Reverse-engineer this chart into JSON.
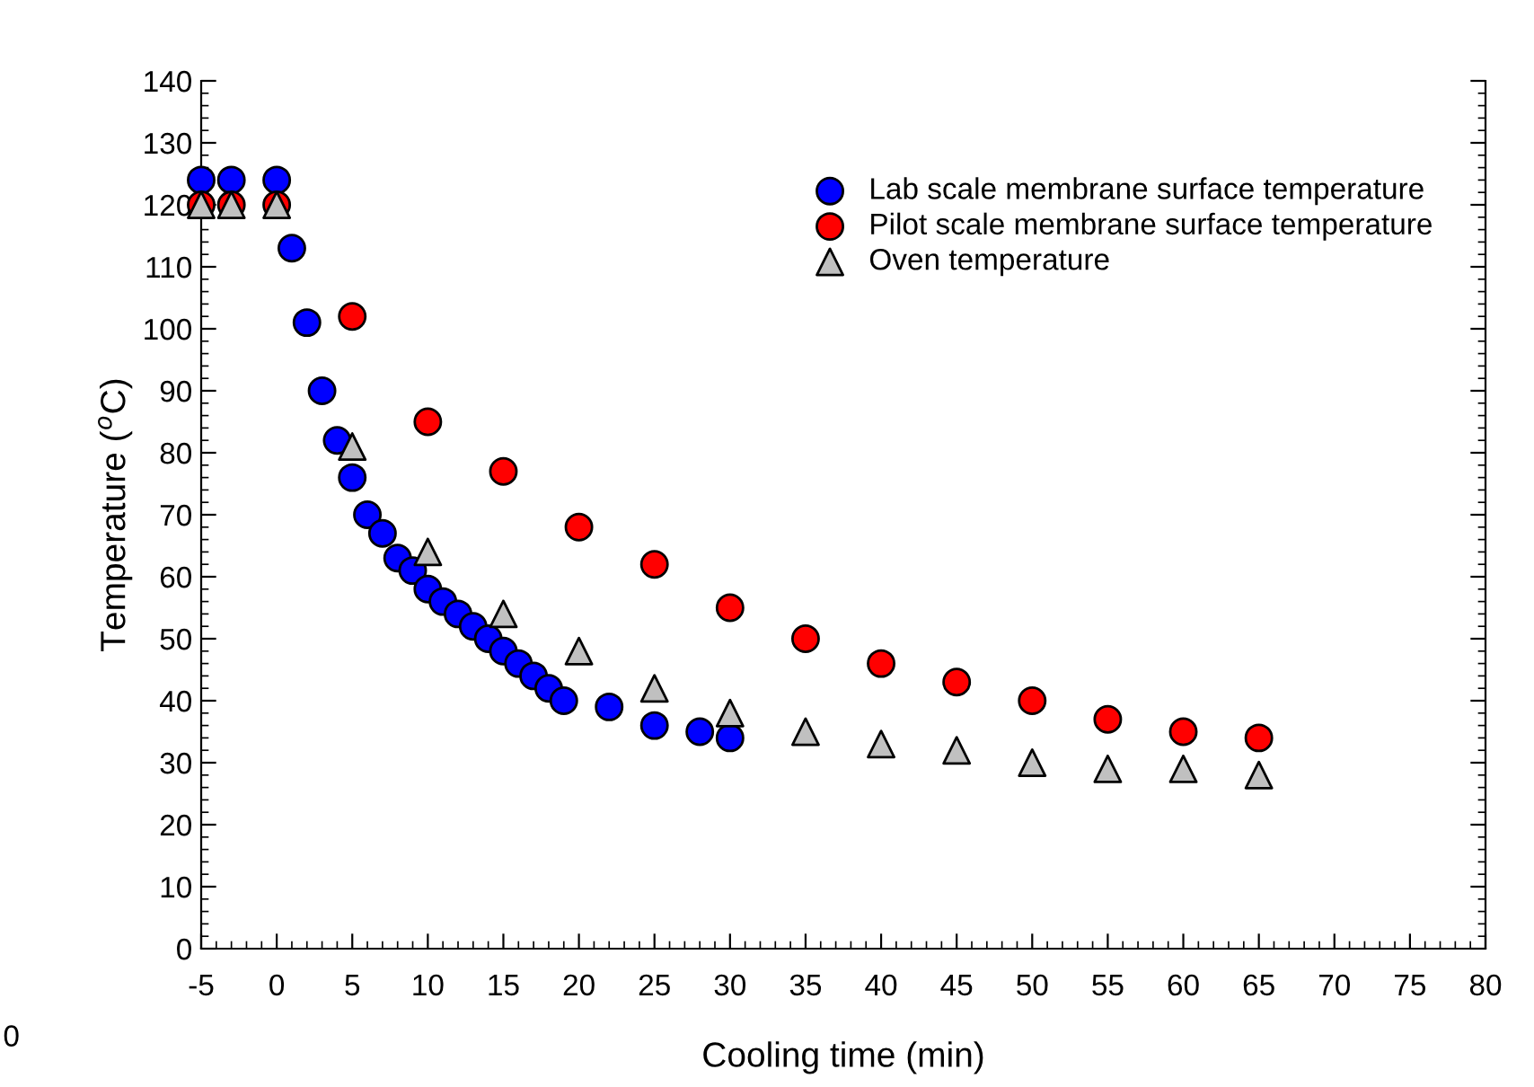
{
  "chart_data": {
    "type": "scatter",
    "xlabel": "Cooling time (min)",
    "ylabel": "Temperature ($^{o}$C)",
    "xlim": [
      -5,
      80
    ],
    "xticks": [
      -5,
      0,
      5,
      10,
      15,
      20,
      25,
      30,
      35,
      40,
      45,
      50,
      55,
      60,
      65,
      70,
      75,
      80
    ],
    "ylim": [
      0,
      140
    ],
    "yticks": [
      0,
      10,
      20,
      30,
      40,
      50,
      60,
      70,
      80,
      90,
      100,
      110,
      120,
      130,
      140
    ],
    "grid": false,
    "legend": "top right",
    "annotations": [
      "0"
    ],
    "series": [
      {
        "name": "Lab scale membrane surface temperature",
        "color": "#0000ff",
        "marker": "circle",
        "x": [
          -5,
          -3,
          0,
          1,
          2,
          3,
          4,
          5,
          6,
          7,
          8,
          9,
          10,
          11,
          12,
          13,
          14,
          15,
          16,
          17,
          18,
          19,
          22,
          25,
          28,
          30
        ],
        "values": [
          124,
          124,
          124,
          113,
          101,
          90,
          82,
          76,
          70,
          67,
          63,
          61,
          58,
          56,
          54,
          52,
          50,
          48,
          46,
          44,
          42,
          40,
          39,
          36,
          35,
          34
        ]
      },
      {
        "name": "Pilot scale membrane surface temperature",
        "color": "#ff0000",
        "marker": "circle",
        "x": [
          -5,
          -3,
          0,
          5,
          10,
          15,
          20,
          25,
          30,
          35,
          40,
          45,
          50,
          55,
          60,
          65
        ],
        "values": [
          120,
          120,
          120,
          102,
          85,
          77,
          68,
          62,
          55,
          50,
          46,
          43,
          40,
          37,
          35,
          34
        ]
      },
      {
        "name": "Oven temperature",
        "color": "#c0c0c0",
        "marker": "triangle",
        "x": [
          -5,
          -3,
          0,
          5,
          10,
          15,
          20,
          25,
          30,
          35,
          40,
          45,
          50,
          55,
          60,
          65
        ],
        "values": [
          120,
          120,
          120,
          81,
          64,
          54,
          48,
          42,
          38,
          35,
          33,
          32,
          30,
          29,
          29,
          28
        ]
      }
    ]
  }
}
